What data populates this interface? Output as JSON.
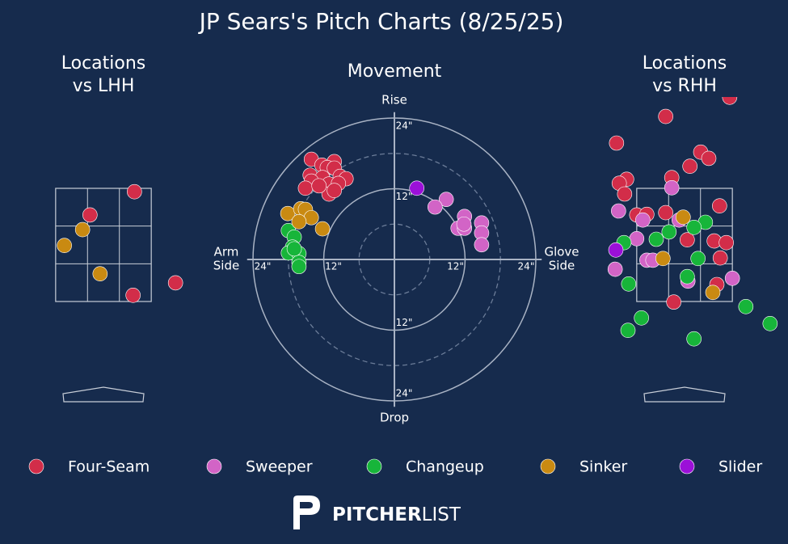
{
  "title": "JP Sears's Pitch Charts (8/25/25)",
  "brand": {
    "bold": "PITCHER",
    "light": "LIST"
  },
  "chart_data": [
    {
      "type": "scatter",
      "kind": "location",
      "title_lines": [
        "Locations",
        "vs LHH"
      ],
      "xlim": [
        -1.5,
        1.5
      ],
      "ylim": [
        -0.3,
        5.1
      ],
      "strike_zone": {
        "left": -0.71,
        "right": 0.71,
        "bottom": 1.5,
        "top": 3.5
      },
      "series": [
        {
          "name": "Four-Seam",
          "color": "#d22d49",
          "x": [
            0.46,
            -0.2,
            0.44,
            1.07
          ],
          "y": [
            3.44,
            3.03,
            1.61,
            1.83
          ]
        },
        {
          "name": "Sinker",
          "color": "#c98a12",
          "x": [
            -0.31,
            -0.58,
            -0.05
          ],
          "y": [
            2.77,
            2.49,
            1.99
          ]
        }
      ]
    },
    {
      "type": "scatter",
      "kind": "movement",
      "title": "Movement",
      "xlim": [
        -25,
        25
      ],
      "ylim": [
        -25,
        25
      ],
      "solid_rings": [
        12,
        24
      ],
      "dashed_rings": [
        6,
        18
      ],
      "top_label": "Rise",
      "bottom_label": "Drop",
      "left_label": [
        "Arm",
        "Side"
      ],
      "right_label": [
        "Glove",
        "Side"
      ],
      "xticks": [
        {
          "value": -24,
          "label": "24\""
        },
        {
          "value": -12,
          "label": "12\""
        },
        {
          "value": 12,
          "label": "12\""
        },
        {
          "value": 24,
          "label": "24\""
        }
      ],
      "yticks": [
        {
          "value": 24,
          "label": "24\""
        },
        {
          "value": 12,
          "label": "12\""
        },
        {
          "value": -12,
          "label": "12\""
        },
        {
          "value": -24,
          "label": "24\""
        }
      ],
      "series": [
        {
          "name": "Four-Seam",
          "color": "#d22d49",
          "x": [
            -14.1,
            -10.2,
            -12.3,
            -11.4,
            -10.2,
            -14.3,
            -12.2,
            -9.2,
            -8.2,
            -14.1,
            -15.1,
            -11.1,
            -9.5,
            -11.1,
            -10.2,
            -12.8
          ],
          "y": [
            17.0,
            16.6,
            16.0,
            15.6,
            15.5,
            14.3,
            13.9,
            14.1,
            13.7,
            13.3,
            12.1,
            12.8,
            12.9,
            11.1,
            11.7,
            12.5
          ]
        },
        {
          "name": "Sweeper",
          "color": "#d264c6",
          "x": [
            8.8,
            6.9,
            11.9,
            14.8,
            14.8,
            10.8,
            11.9,
            14.8,
            11.8
          ],
          "y": [
            10.2,
            8.9,
            7.3,
            6.2,
            4.5,
            5.3,
            5.3,
            2.5,
            6.0
          ]
        },
        {
          "name": "Changeup",
          "color": "#17b53a",
          "x": [
            -18.0,
            -17.0,
            -17.3,
            -18.0,
            -16.2,
            -16.2,
            -16.2,
            -17.0
          ],
          "y": [
            4.9,
            3.8,
            2.1,
            1.1,
            1.0,
            -0.5,
            -1.2,
            1.8
          ]
        },
        {
          "name": "Sinker",
          "color": "#c98a12",
          "x": [
            -18.1,
            -15.9,
            -15.1,
            -14.1,
            -16.2,
            -12.2
          ],
          "y": [
            7.8,
            8.6,
            8.5,
            7.1,
            6.4,
            5.2
          ]
        },
        {
          "name": "Slider",
          "color": "#9b10d8",
          "x": [
            3.8
          ],
          "y": [
            12.1
          ]
        }
      ]
    },
    {
      "type": "scatter",
      "kind": "location",
      "title_lines": [
        "Locations",
        "vs RHH"
      ],
      "xlim": [
        -1.5,
        1.5
      ],
      "ylim": [
        -0.3,
        5.1
      ],
      "strike_zone": {
        "left": -0.71,
        "right": 0.71,
        "bottom": 1.5,
        "top": 3.5
      },
      "series": [
        {
          "name": "Four-Seam",
          "color": "#d22d49",
          "x": [
            -0.28,
            -1.01,
            0.24,
            0.36,
            0.08,
            -0.86,
            -0.97,
            -0.19,
            -0.89,
            0.52,
            -0.71,
            -0.56,
            -0.28,
            0.04,
            0.44,
            0.62,
            0.53,
            0.48,
            -0.16,
            0.67
          ],
          "y": [
            4.77,
            4.3,
            4.14,
            4.03,
            3.89,
            3.66,
            3.59,
            3.69,
            3.4,
            3.19,
            3.03,
            3.04,
            3.07,
            2.59,
            2.57,
            2.54,
            2.27,
            1.8,
            1.49,
            5.11
          ]
        },
        {
          "name": "Sweeper",
          "color": "#d264c6",
          "x": [
            -0.19,
            -0.98,
            -0.62,
            -0.71,
            -0.56,
            -0.47,
            -1.03,
            0.05,
            0.71,
            -0.08
          ],
          "y": [
            3.51,
            3.1,
            2.94,
            2.61,
            2.23,
            2.23,
            2.07,
            1.86,
            1.91,
            2.94
          ]
        },
        {
          "name": "Changeup",
          "color": "#17b53a",
          "x": [
            0.31,
            0.14,
            -0.23,
            -0.42,
            -0.9,
            0.2,
            0.04,
            -0.83,
            0.91,
            -0.64,
            -0.84,
            0.14,
            1.27
          ],
          "y": [
            2.9,
            2.81,
            2.73,
            2.6,
            2.54,
            2.26,
            1.94,
            1.81,
            1.41,
            1.21,
            0.99,
            0.84,
            1.11
          ]
        },
        {
          "name": "Sinker",
          "color": "#c98a12",
          "x": [
            -0.02,
            -0.32,
            0.42
          ],
          "y": [
            2.99,
            2.26,
            1.66
          ]
        },
        {
          "name": "Slider",
          "color": "#9b10d8",
          "x": [
            -1.02
          ],
          "y": [
            2.41
          ]
        }
      ]
    }
  ]
}
